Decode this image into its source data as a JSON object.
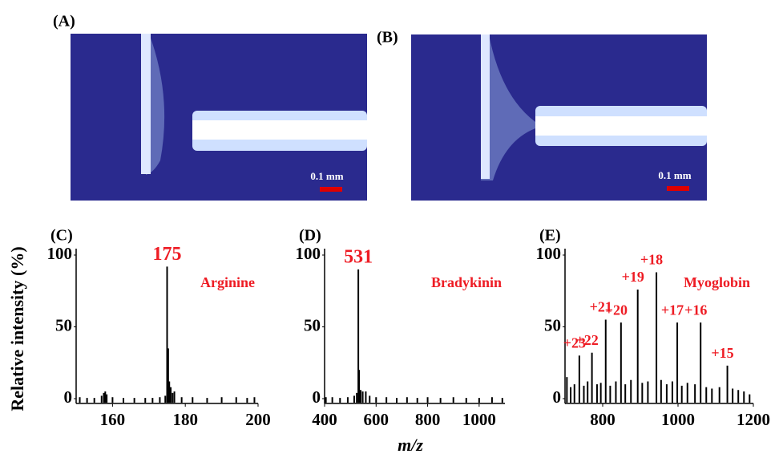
{
  "figure": {
    "y_label": "Relative intensity (%)",
    "x_label": "m/z"
  },
  "photos": [
    {
      "label": "(A)",
      "scale_bar": "0.1 mm"
    },
    {
      "label": "(B)",
      "scale_bar": "0.1 mm"
    }
  ],
  "chart_data": [
    {
      "type": "spectrum",
      "label": "(C)",
      "name": "Arginine",
      "color": "#000000",
      "label_color": "#ee1c24",
      "x": [
        151,
        153,
        155,
        157,
        157.6,
        158,
        158.4,
        160,
        163,
        166,
        169,
        171,
        173,
        174.5,
        175,
        175.3,
        175.6,
        176,
        176.5,
        177,
        179,
        182,
        186,
        190,
        194,
        197,
        199
      ],
      "values": [
        1,
        0.5,
        0.5,
        2,
        4,
        5,
        3,
        1,
        0.5,
        0.5,
        0.5,
        0.5,
        1,
        2,
        92,
        35,
        12,
        8,
        4,
        5,
        1,
        1,
        0.5,
        1,
        1,
        0.5,
        1
      ],
      "peak_labels": [
        {
          "text": "175",
          "x": 175
        }
      ],
      "xlim": [
        150,
        200
      ],
      "xticks": [
        160,
        180,
        200
      ],
      "ylim": [
        0,
        100
      ],
      "yticks": [
        0,
        50,
        100
      ]
    },
    {
      "type": "spectrum",
      "label": "(D)",
      "name": "Bradykinin",
      "color": "#000000",
      "label_color": "#ee1c24",
      "x": [
        405,
        430,
        460,
        490,
        515,
        525,
        531,
        534,
        540,
        548,
        560,
        575,
        600,
        640,
        680,
        720,
        760,
        800,
        850,
        900,
        950,
        1000,
        1050,
        1090
      ],
      "values": [
        1,
        1,
        0.5,
        1,
        2,
        4,
        90,
        20,
        6,
        5,
        5,
        2,
        1,
        1,
        0.5,
        1,
        0.5,
        1,
        0.5,
        1,
        0.5,
        0.5,
        1,
        0.5
      ],
      "peak_labels": [
        {
          "text": "531",
          "x": 531
        }
      ],
      "xlim": [
        400,
        1100
      ],
      "xticks": [
        400,
        600,
        800,
        1000
      ],
      "ylim": [
        0,
        100
      ],
      "yticks": [
        0,
        50,
        100
      ]
    },
    {
      "type": "spectrum",
      "label": "(E)",
      "name": "Myoglobin",
      "color": "#000000",
      "label_color": "#ee1c24",
      "x": [
        705,
        715,
        725,
        738,
        750,
        760,
        771.5,
        785,
        795,
        808,
        820,
        835,
        848.6,
        860,
        875,
        893,
        905,
        920,
        942.7,
        955,
        970,
        985,
        998,
        1010,
        1025,
        1045,
        1060,
        1075,
        1090,
        1110,
        1131,
        1145,
        1160,
        1175,
        1190
      ],
      "values": [
        15,
        8,
        10,
        30,
        9,
        12,
        32,
        10,
        11,
        55,
        9,
        12,
        53,
        10,
        13,
        76,
        11,
        12,
        88,
        13,
        10,
        12,
        53,
        9,
        11,
        10,
        53,
        8,
        7,
        8,
        23,
        7,
        6,
        5,
        3
      ],
      "peak_labels": [
        {
          "text": "+23",
          "x": 738
        },
        {
          "text": "+22",
          "x": 771.5
        },
        {
          "text": "+21",
          "x": 808
        },
        {
          "text": "+20",
          "x": 848.6
        },
        {
          "text": "+19",
          "x": 893
        },
        {
          "text": "+18",
          "x": 942.7
        },
        {
          "text": "+17",
          "x": 998
        },
        {
          "text": "+16",
          "x": 1060
        },
        {
          "text": "+15",
          "x": 1131
        }
      ],
      "xlim": [
        700,
        1200
      ],
      "xticks": [
        800,
        1000,
        1200
      ],
      "ylim": [
        0,
        100
      ],
      "yticks": [
        0,
        50,
        100
      ]
    }
  ]
}
